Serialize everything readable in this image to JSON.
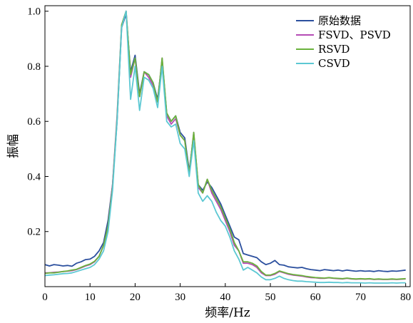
{
  "chart_data": {
    "type": "line",
    "xlabel": "频率/Hz",
    "ylabel": "振幅",
    "xlim": [
      0,
      81
    ],
    "ylim": [
      0,
      1.02
    ],
    "x_ticks": [
      0,
      10,
      20,
      30,
      40,
      50,
      60,
      70,
      80
    ],
    "y_ticks": [
      0.2,
      0.4,
      0.6,
      0.8,
      1.0
    ],
    "x_tick_labels": [
      "0",
      "10",
      "20",
      "30",
      "40",
      "50",
      "60",
      "70",
      "80"
    ],
    "y_tick_labels": [
      "0.2",
      "0.4",
      "0.6",
      "0.8",
      "1.0"
    ],
    "grid": false,
    "legend_position": "top-right",
    "series": [
      {
        "name": "原始数据",
        "color": "#2b4f9e",
        "x": [
          0,
          1,
          2,
          3,
          4,
          5,
          6,
          7,
          8,
          9,
          10,
          11,
          12,
          13,
          14,
          15,
          16,
          17,
          18,
          19,
          20,
          21,
          22,
          23,
          24,
          25,
          26,
          27,
          28,
          29,
          30,
          31,
          32,
          33,
          34,
          35,
          36,
          37,
          38,
          39,
          40,
          41,
          42,
          43,
          44,
          45,
          46,
          47,
          48,
          49,
          50,
          51,
          52,
          53,
          54,
          55,
          56,
          57,
          58,
          59,
          60,
          61,
          62,
          63,
          64,
          65,
          66,
          67,
          68,
          69,
          70,
          71,
          72,
          73,
          74,
          75,
          76,
          77,
          78,
          79,
          80
        ],
        "y": [
          0.08,
          0.075,
          0.08,
          0.078,
          0.075,
          0.077,
          0.074,
          0.085,
          0.09,
          0.098,
          0.1,
          0.11,
          0.13,
          0.16,
          0.24,
          0.37,
          0.6,
          0.94,
          0.99,
          0.78,
          0.84,
          0.7,
          0.78,
          0.77,
          0.74,
          0.68,
          0.82,
          0.63,
          0.6,
          0.62,
          0.56,
          0.54,
          0.42,
          0.55,
          0.37,
          0.35,
          0.38,
          0.36,
          0.33,
          0.3,
          0.26,
          0.22,
          0.18,
          0.17,
          0.12,
          0.115,
          0.11,
          0.105,
          0.09,
          0.08,
          0.085,
          0.095,
          0.08,
          0.078,
          0.072,
          0.07,
          0.068,
          0.07,
          0.065,
          0.062,
          0.06,
          0.058,
          0.062,
          0.06,
          0.058,
          0.06,
          0.057,
          0.06,
          0.058,
          0.056,
          0.058,
          0.056,
          0.057,
          0.055,
          0.058,
          0.056,
          0.055,
          0.057,
          0.056,
          0.058,
          0.06
        ]
      },
      {
        "name": "FSVD、PSVD",
        "color": "#b54cb5",
        "x": [
          0,
          1,
          2,
          3,
          4,
          5,
          6,
          7,
          8,
          9,
          10,
          11,
          12,
          13,
          14,
          15,
          16,
          17,
          18,
          19,
          20,
          21,
          22,
          23,
          24,
          25,
          26,
          27,
          28,
          29,
          30,
          31,
          32,
          33,
          34,
          35,
          36,
          37,
          38,
          39,
          40,
          41,
          42,
          43,
          44,
          45,
          46,
          47,
          48,
          49,
          50,
          51,
          52,
          53,
          54,
          55,
          56,
          57,
          58,
          59,
          60,
          61,
          62,
          63,
          64,
          65,
          66,
          67,
          68,
          69,
          70,
          71,
          72,
          73,
          74,
          75,
          76,
          77,
          78,
          79,
          80
        ],
        "y": [
          0.05,
          0.05,
          0.052,
          0.053,
          0.055,
          0.056,
          0.058,
          0.062,
          0.068,
          0.075,
          0.08,
          0.09,
          0.11,
          0.15,
          0.22,
          0.37,
          0.62,
          0.95,
          1.0,
          0.76,
          0.83,
          0.69,
          0.78,
          0.76,
          0.73,
          0.67,
          0.83,
          0.62,
          0.59,
          0.61,
          0.55,
          0.53,
          0.41,
          0.56,
          0.36,
          0.34,
          0.39,
          0.34,
          0.31,
          0.28,
          0.24,
          0.2,
          0.15,
          0.13,
          0.085,
          0.085,
          0.08,
          0.07,
          0.05,
          0.04,
          0.04,
          0.045,
          0.055,
          0.05,
          0.045,
          0.042,
          0.04,
          0.038,
          0.035,
          0.033,
          0.032,
          0.03,
          0.03,
          0.032,
          0.03,
          0.029,
          0.028,
          0.03,
          0.028,
          0.027,
          0.028,
          0.027,
          0.028,
          0.026,
          0.027,
          0.026,
          0.026,
          0.027,
          0.026,
          0.027,
          0.028
        ]
      },
      {
        "name": "RSVD",
        "color": "#6ab23c",
        "x": [
          0,
          1,
          2,
          3,
          4,
          5,
          6,
          7,
          8,
          9,
          10,
          11,
          12,
          13,
          14,
          15,
          16,
          17,
          18,
          19,
          20,
          21,
          22,
          23,
          24,
          25,
          26,
          27,
          28,
          29,
          30,
          31,
          32,
          33,
          34,
          35,
          36,
          37,
          38,
          39,
          40,
          41,
          42,
          43,
          44,
          45,
          46,
          47,
          48,
          49,
          50,
          51,
          52,
          53,
          54,
          55,
          56,
          57,
          58,
          59,
          60,
          61,
          62,
          63,
          64,
          65,
          66,
          67,
          68,
          69,
          70,
          71,
          72,
          73,
          74,
          75,
          76,
          77,
          78,
          79,
          80
        ],
        "y": [
          0.048,
          0.05,
          0.05,
          0.052,
          0.055,
          0.057,
          0.06,
          0.063,
          0.07,
          0.077,
          0.082,
          0.092,
          0.11,
          0.15,
          0.22,
          0.36,
          0.61,
          0.95,
          1.0,
          0.77,
          0.83,
          0.69,
          0.78,
          0.77,
          0.74,
          0.67,
          0.83,
          0.63,
          0.6,
          0.62,
          0.55,
          0.53,
          0.41,
          0.56,
          0.37,
          0.34,
          0.39,
          0.35,
          0.32,
          0.29,
          0.25,
          0.21,
          0.16,
          0.13,
          0.09,
          0.09,
          0.085,
          0.075,
          0.055,
          0.042,
          0.042,
          0.048,
          0.057,
          0.052,
          0.047,
          0.044,
          0.042,
          0.04,
          0.037,
          0.035,
          0.033,
          0.032,
          0.031,
          0.033,
          0.031,
          0.03,
          0.029,
          0.031,
          0.029,
          0.028,
          0.029,
          0.028,
          0.029,
          0.027,
          0.028,
          0.027,
          0.027,
          0.028,
          0.027,
          0.028,
          0.029
        ]
      },
      {
        "name": "CSVD",
        "color": "#5cc8d3",
        "x": [
          0,
          1,
          2,
          3,
          4,
          5,
          6,
          7,
          8,
          9,
          10,
          11,
          12,
          13,
          14,
          15,
          16,
          17,
          18,
          19,
          20,
          21,
          22,
          23,
          24,
          25,
          26,
          27,
          28,
          29,
          30,
          31,
          32,
          33,
          34,
          35,
          36,
          37,
          38,
          39,
          40,
          41,
          42,
          43,
          44,
          45,
          46,
          47,
          48,
          49,
          50,
          51,
          52,
          53,
          54,
          55,
          56,
          57,
          58,
          59,
          60,
          61,
          62,
          63,
          64,
          65,
          66,
          67,
          68,
          69,
          70,
          71,
          72,
          73,
          74,
          75,
          76,
          77,
          78,
          79,
          80
        ],
        "y": [
          0.04,
          0.042,
          0.043,
          0.045,
          0.047,
          0.048,
          0.05,
          0.055,
          0.06,
          0.065,
          0.07,
          0.08,
          0.1,
          0.13,
          0.2,
          0.35,
          0.6,
          0.94,
          1.0,
          0.68,
          0.8,
          0.64,
          0.76,
          0.75,
          0.72,
          0.65,
          0.8,
          0.6,
          0.58,
          0.59,
          0.52,
          0.5,
          0.4,
          0.53,
          0.34,
          0.31,
          0.33,
          0.31,
          0.27,
          0.24,
          0.22,
          0.18,
          0.13,
          0.1,
          0.06,
          0.07,
          0.06,
          0.05,
          0.035,
          0.025,
          0.025,
          0.03,
          0.038,
          0.03,
          0.025,
          0.022,
          0.02,
          0.02,
          0.018,
          0.017,
          0.016,
          0.015,
          0.015,
          0.016,
          0.015,
          0.015,
          0.014,
          0.015,
          0.014,
          0.014,
          0.014,
          0.013,
          0.014,
          0.013,
          0.013,
          0.013,
          0.013,
          0.014,
          0.013,
          0.014,
          0.014
        ]
      }
    ]
  }
}
